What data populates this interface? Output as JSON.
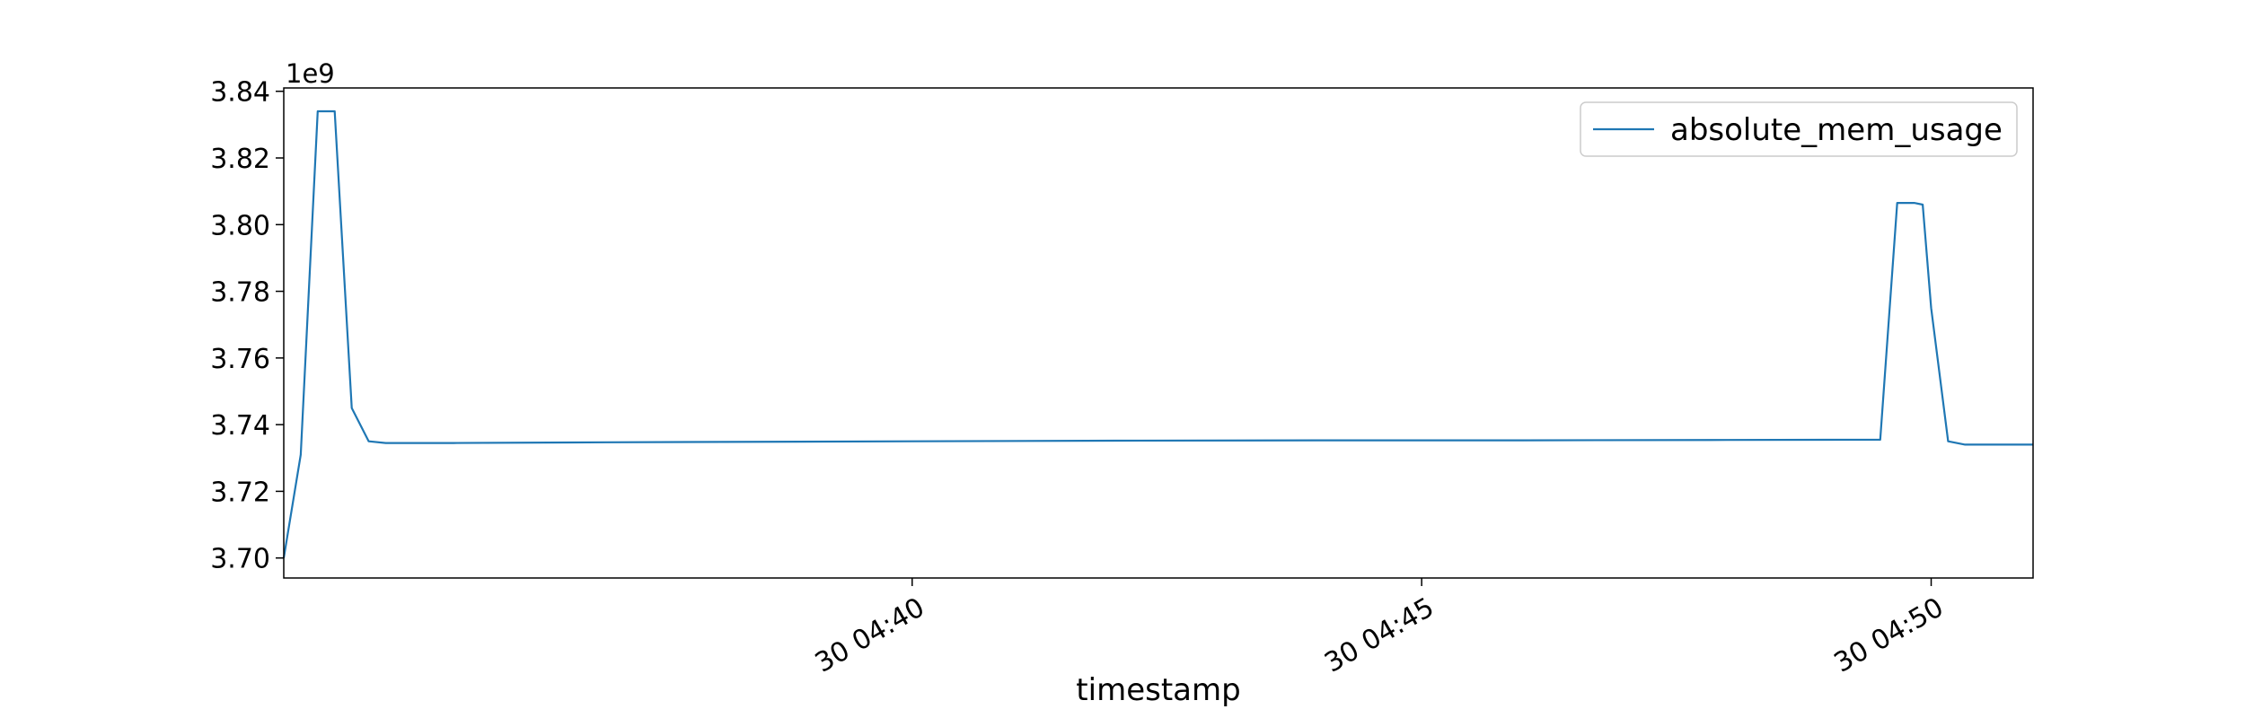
{
  "chart_data": {
    "type": "line",
    "title": "",
    "xlabel": "timestamp",
    "ylabel": "",
    "y_offset_label": "1e9",
    "ylim": [
      3.694,
      3.841
    ],
    "xlim": [
      "30 04:33:50",
      "30 04:51:00"
    ],
    "x_ticks": [
      {
        "value": "30 04:40:00",
        "label": "30 04:40"
      },
      {
        "value": "30 04:45:00",
        "label": "30 04:45"
      },
      {
        "value": "30 04:50:00",
        "label": "30 04:50"
      }
    ],
    "y_ticks": [
      {
        "value": 3.7,
        "label": "3.70"
      },
      {
        "value": 3.72,
        "label": "3.72"
      },
      {
        "value": 3.74,
        "label": "3.74"
      },
      {
        "value": 3.76,
        "label": "3.76"
      },
      {
        "value": 3.78,
        "label": "3.78"
      },
      {
        "value": 3.8,
        "label": "3.80"
      },
      {
        "value": 3.82,
        "label": "3.82"
      },
      {
        "value": 3.84,
        "label": "3.84"
      }
    ],
    "grid": false,
    "legend_position": "top-right",
    "series": [
      {
        "name": "absolute_mem_usage",
        "color": "#1f77b4",
        "points": [
          [
            "30 04:33:50",
            3.7
          ],
          [
            "30 04:34:00",
            3.731
          ],
          [
            "30 04:34:10",
            3.834
          ],
          [
            "30 04:34:20",
            3.834
          ],
          [
            "30 04:34:30",
            3.745
          ],
          [
            "30 04:34:40",
            3.735
          ],
          [
            "30 04:34:50",
            3.7345
          ],
          [
            "30 04:35:30",
            3.7345
          ],
          [
            "30 04:37:00",
            3.7347
          ],
          [
            "30 04:40:00",
            3.735
          ],
          [
            "30 04:42:00",
            3.7352
          ],
          [
            "30 04:44:00",
            3.7353
          ],
          [
            "30 04:46:00",
            3.7353
          ],
          [
            "30 04:48:00",
            3.7354
          ],
          [
            "30 04:49:30",
            3.7355
          ],
          [
            "30 04:49:40",
            3.8065
          ],
          [
            "30 04:49:50",
            3.8065
          ],
          [
            "30 04:49:55",
            3.806
          ],
          [
            "30 04:50:00",
            3.775
          ],
          [
            "30 04:50:10",
            3.735
          ],
          [
            "30 04:50:20",
            3.734
          ],
          [
            "30 04:51:00",
            3.734
          ]
        ]
      }
    ]
  }
}
